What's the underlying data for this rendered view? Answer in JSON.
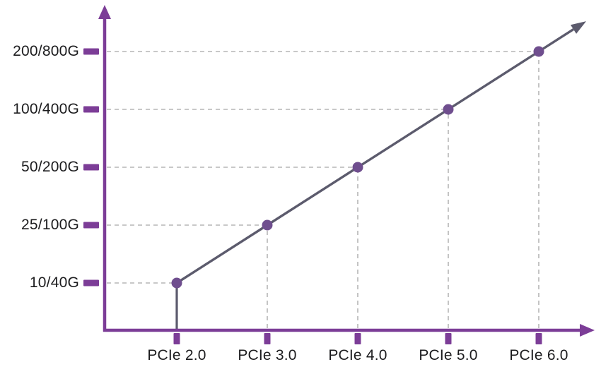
{
  "chart_data": {
    "type": "line",
    "title": "",
    "xlabel": "",
    "ylabel": "",
    "categories": [
      "PCIe 2.0",
      "PCIe 3.0",
      "PCIe 4.0",
      "PCIe 5.0",
      "PCIe 6.0"
    ],
    "ytick_labels": [
      "10/40G",
      "25/100G",
      "50/200G",
      "100/400G",
      "200/800G"
    ],
    "series": [
      {
        "x": [
          "PCIe 2.0",
          "PCIe 3.0",
          "PCIe 4.0",
          "PCIe 5.0",
          "PCIe 6.0"
        ],
        "values": [
          "10/40G",
          "25/100G",
          "50/200G",
          "100/400G",
          "200/800G"
        ],
        "values_numeric_primary_G": [
          10,
          25,
          50,
          100,
          200
        ],
        "values_numeric_secondary_G": [
          40,
          100,
          200,
          400,
          800
        ]
      }
    ],
    "grid": "dashed guide lines from each data point to both axes",
    "legend": "none",
    "trend": "single straight rising line through all five points, continuing past PCIe 6.0 ending in an arrowhead; solid riser from x-axis up to the PCIe 2.0 point; both axes end in arrowheads",
    "colors": {
      "axis": "#7c3d97",
      "tick": "#7c3d97",
      "line": "#5c5b6d",
      "point": "#6f4e8e",
      "grid": "#b5b5b5",
      "text": "#1c1c1e",
      "background": "#ffffff"
    }
  }
}
